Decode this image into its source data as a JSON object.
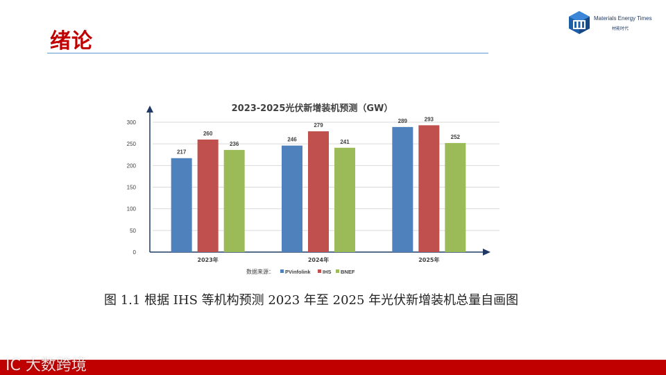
{
  "slide": {
    "title": "绪论",
    "caption": "图 1.1  根据 IHS 等机构预测 2023 年至 2025 年光伏新增装机总量自画图"
  },
  "logo": {
    "name": "Materials Energy Times",
    "subtitle": "材能时代"
  },
  "watermark": "IC 大数跨境",
  "colors": {
    "accent_red": "#c00000",
    "rule_blue": "#5b9bd5",
    "series_blue": "#4f81bd",
    "series_red": "#c0504d",
    "series_green": "#9bbb59"
  },
  "chart_data": {
    "type": "bar",
    "title": "2023-2025光伏新增装机预测（GW）",
    "categories": [
      "2023年",
      "2024年",
      "2025年"
    ],
    "series": [
      {
        "name": "PVinfolink",
        "color": "#4f81bd",
        "values": [
          217,
          246,
          289
        ]
      },
      {
        "name": "IHS",
        "color": "#c0504d",
        "values": [
          260,
          279,
          293
        ]
      },
      {
        "name": "BNEF",
        "color": "#9bbb59",
        "values": [
          236,
          241,
          252
        ]
      }
    ],
    "legend_prefix": "数据来源：",
    "legend_position": "bottom",
    "yticks": [
      0,
      50,
      100,
      150,
      200,
      250,
      300
    ],
    "ylim": [
      0,
      300
    ],
    "grid": true,
    "data_labels": true
  }
}
